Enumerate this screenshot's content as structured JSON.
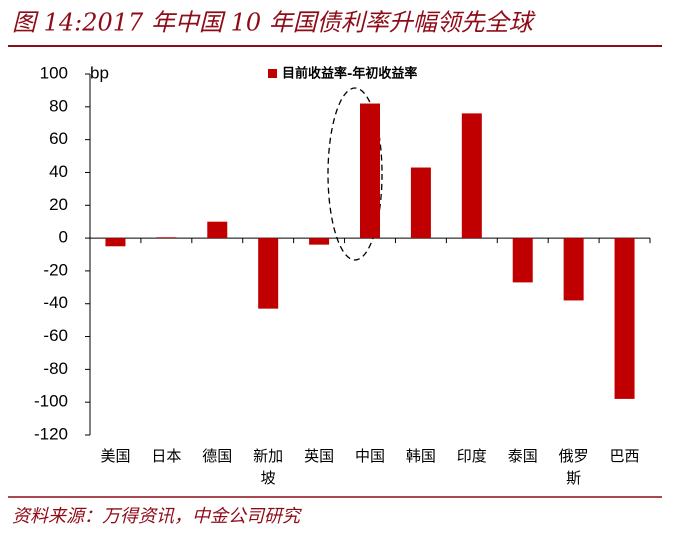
{
  "chart_data": {
    "type": "bar",
    "title": "图 14:2017 年中国 10 年国债利率升幅领先全球",
    "y_unit": "bp",
    "source": "资料来源：万得资讯，中金公司研究",
    "categories": [
      "美国",
      "日本",
      "德国",
      "新加坡",
      "英国",
      "中国",
      "韩国",
      "印度",
      "泰国",
      "俄罗斯",
      "巴西"
    ],
    "series": [
      {
        "name": "目前收益率-年初收益率",
        "color": "#c00000",
        "values": [
          -5,
          0.5,
          10,
          -43,
          -4,
          82,
          43,
          76,
          -27,
          -38,
          -98
        ]
      }
    ],
    "ylim": [
      -120,
      100
    ],
    "yticks": [
      -120,
      -100,
      -80,
      -60,
      -40,
      -20,
      0,
      20,
      40,
      60,
      80,
      100
    ],
    "grid": false
  }
}
